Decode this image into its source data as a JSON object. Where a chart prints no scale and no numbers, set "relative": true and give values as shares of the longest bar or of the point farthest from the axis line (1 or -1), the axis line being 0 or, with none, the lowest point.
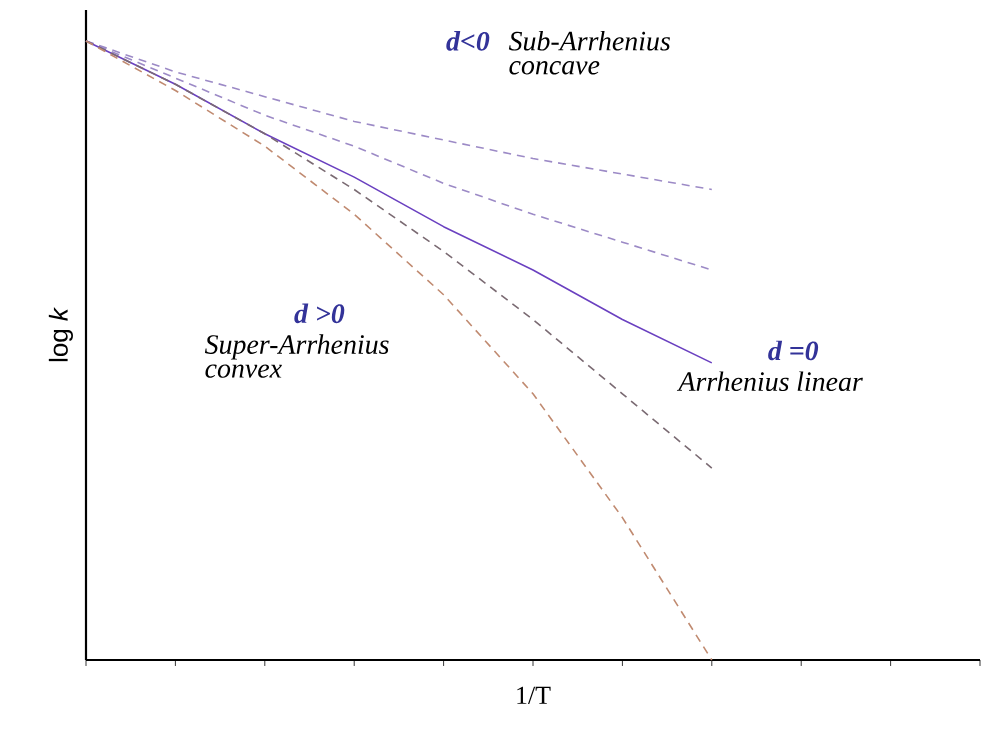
{
  "chart_data": {
    "type": "line",
    "relative": true,
    "xlabel": "1/T",
    "ylabel": "log *k*",
    "categories": [
      null,
      null,
      null,
      null,
      null,
      null,
      null,
      null,
      null,
      null,
      null
    ],
    "series": [
      {
        "color": "#9c8ac6",
        "line_style": "dashed",
        "values": [
          1,
          0.95,
          0.91,
          0.87,
          0.84,
          0.81,
          0.785,
          0.76,
          null,
          null,
          null
        ]
      },
      {
        "color": "#9c8ac6",
        "line_style": "dashed",
        "values": [
          1,
          0.94,
          0.88,
          0.83,
          0.77,
          0.72,
          0.675,
          0.63,
          null,
          null,
          null
        ]
      },
      {
        "color": "#6a40c0",
        "line_style": "solid",
        "values": [
          1,
          0.93,
          0.85,
          0.78,
          0.7,
          0.63,
          0.55,
          0.48,
          null,
          null,
          null
        ]
      },
      {
        "color": "#7a6a72",
        "line_style": "dashed",
        "values": [
          1,
          0.93,
          0.85,
          0.76,
          0.66,
          0.55,
          0.43,
          0.31,
          null,
          null,
          null
        ]
      },
      {
        "color": "#c08a70",
        "line_style": "dashed",
        "values": [
          1,
          0.92,
          0.83,
          0.72,
          0.59,
          0.43,
          0.23,
          0,
          null,
          null,
          null
        ]
      }
    ],
    "annotations": [
      "d<0",
      "Sub-Arrhenius concave",
      "d >0",
      "Super-Arrhenius convex",
      "d =0",
      "Arrhenius linear"
    ]
  }
}
